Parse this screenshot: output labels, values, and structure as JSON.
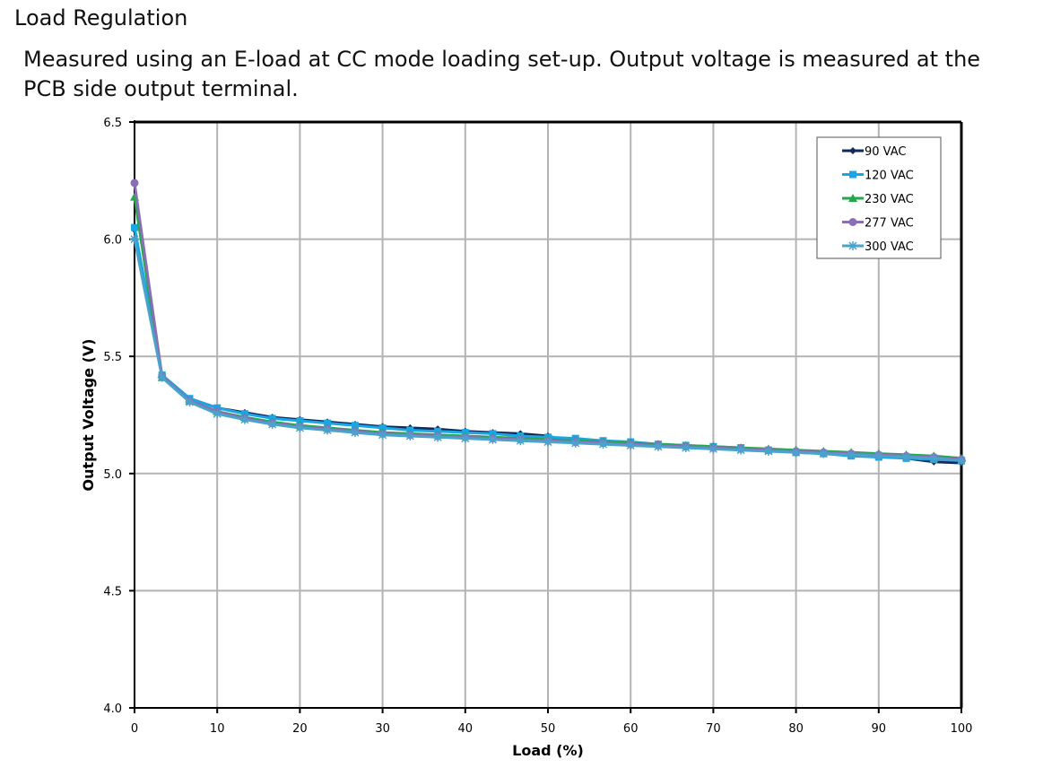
{
  "page": {
    "heading": "Load Regulation",
    "description": "Measured using an E-load at CC mode loading set-up. Output voltage is measured at the PCB side output terminal."
  },
  "chart_data": {
    "type": "line",
    "title": "",
    "xlabel": "Load (%)",
    "ylabel": "Output Voltage (V)",
    "xlim": [
      0,
      100
    ],
    "ylim": [
      4.0,
      6.5
    ],
    "x_ticks": [
      "0",
      "10",
      "20",
      "30",
      "40",
      "50",
      "60",
      "70",
      "80",
      "90",
      "100"
    ],
    "y_ticks": [
      "4.0",
      "4.5",
      "5.0",
      "5.5",
      "6.0",
      "6.5"
    ],
    "grid": true,
    "legend_position": "top-right",
    "x": [
      0,
      3.33,
      6.67,
      10,
      13.33,
      16.67,
      20,
      23.33,
      26.67,
      30,
      33.33,
      36.67,
      40,
      43.33,
      46.67,
      50,
      53.33,
      56.67,
      60,
      63.33,
      66.67,
      70,
      73.33,
      76.67,
      80,
      83.33,
      86.67,
      90,
      93.33,
      96.67,
      100
    ],
    "series": [
      {
        "name": "90 VAC",
        "color": "#10285a",
        "marker": "diamond",
        "values": [
          6.04,
          5.42,
          5.32,
          5.28,
          5.26,
          5.24,
          5.23,
          5.22,
          5.21,
          5.2,
          5.195,
          5.19,
          5.18,
          5.175,
          5.17,
          5.16,
          5.13,
          5.13,
          5.125,
          5.12,
          5.115,
          5.11,
          5.105,
          5.1,
          5.095,
          5.09,
          5.08,
          5.075,
          5.065,
          5.05,
          5.045
        ]
      },
      {
        "name": "120 VAC",
        "color": "#1aa6e4",
        "marker": "square",
        "values": [
          6.05,
          5.42,
          5.32,
          5.28,
          5.255,
          5.235,
          5.225,
          5.215,
          5.205,
          5.195,
          5.185,
          5.18,
          5.175,
          5.17,
          5.16,
          5.155,
          5.15,
          5.14,
          5.135,
          5.125,
          5.12,
          5.115,
          5.11,
          5.1,
          5.09,
          5.085,
          5.075,
          5.07,
          5.065,
          5.06,
          5.055
        ]
      },
      {
        "name": "230 VAC",
        "color": "#22a84a",
        "marker": "triangle",
        "values": [
          6.18,
          5.41,
          5.31,
          5.265,
          5.24,
          5.22,
          5.205,
          5.195,
          5.185,
          5.175,
          5.17,
          5.165,
          5.16,
          5.155,
          5.15,
          5.145,
          5.14,
          5.135,
          5.13,
          5.125,
          5.12,
          5.115,
          5.11,
          5.105,
          5.1,
          5.095,
          5.09,
          5.085,
          5.08,
          5.075,
          5.065
        ]
      },
      {
        "name": "277 VAC",
        "color": "#8a6fb5",
        "marker": "circle",
        "values": [
          6.24,
          5.415,
          5.31,
          5.265,
          5.235,
          5.215,
          5.2,
          5.19,
          5.18,
          5.17,
          5.165,
          5.16,
          5.155,
          5.15,
          5.145,
          5.14,
          5.135,
          5.13,
          5.125,
          5.12,
          5.115,
          5.11,
          5.105,
          5.1,
          5.095,
          5.09,
          5.085,
          5.08,
          5.075,
          5.07,
          5.06
        ]
      },
      {
        "name": "300 VAC",
        "color": "#4aa3cc",
        "marker": "star",
        "values": [
          6.0,
          5.41,
          5.305,
          5.255,
          5.23,
          5.21,
          5.195,
          5.185,
          5.175,
          5.165,
          5.16,
          5.155,
          5.15,
          5.145,
          5.14,
          5.135,
          5.13,
          5.125,
          5.12,
          5.115,
          5.11,
          5.105,
          5.1,
          5.095,
          5.09,
          5.085,
          5.08,
          5.075,
          5.07,
          5.065,
          5.055
        ]
      }
    ]
  }
}
